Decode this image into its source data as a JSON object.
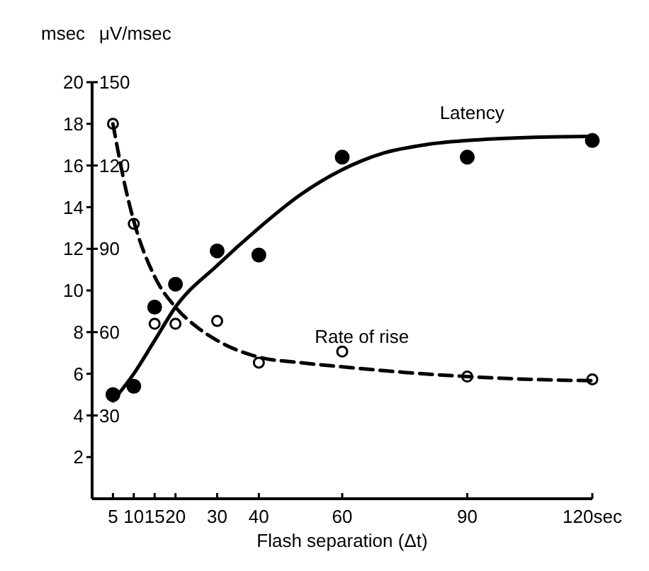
{
  "chart_data": {
    "type": "scatter",
    "xlabel": "Flash separation (Δt)",
    "ylabel": "msec",
    "y2label": "μV/msec",
    "xlim": [
      0,
      120
    ],
    "xticks": [
      5,
      10,
      15,
      20,
      30,
      40,
      60,
      90,
      {
        "value": 120,
        "label": "120sec"
      }
    ],
    "ylim": [
      0,
      20
    ],
    "yticks": [
      2,
      4,
      6,
      8,
      10,
      12,
      14,
      16,
      18,
      20
    ],
    "y2lim": [
      0,
      150
    ],
    "y2ticks": [
      30,
      60,
      90,
      120,
      150
    ],
    "grid": false,
    "series": [
      {
        "color": "#000000",
        "marker": "circle",
        "x": [
          5,
          10,
          15,
          20,
          30,
          40,
          60,
          90,
          120
        ],
        "values": [
          5.0,
          5.4,
          9.2,
          10.3,
          11.9,
          11.7,
          16.4,
          16.4,
          17.2
        ]
      },
      {
        "color": "#000000",
        "marker": "circle",
        "axis": "y2",
        "x": [
          5,
          10,
          15,
          20,
          30,
          40,
          60,
          90,
          120
        ],
        "values": [
          135,
          99,
          63,
          63,
          64,
          49,
          53,
          44,
          43
        ]
      },
      {
        "type": "line",
        "name": "Latency",
        "color": "#000000",
        "line_style": "solid",
        "x": [
          5,
          10,
          15,
          20,
          30,
          40,
          50,
          60,
          70,
          80,
          90,
          105,
          120
        ],
        "values": [
          4.7,
          6.0,
          7.6,
          9.2,
          11.2,
          13.0,
          14.6,
          15.8,
          16.6,
          17.0,
          17.2,
          17.35,
          17.4
        ]
      },
      {
        "type": "line",
        "name": "Rate of rise",
        "color": "#000000",
        "line_style": "dashed",
        "axis": "y2",
        "x": [
          5,
          8,
          10,
          15,
          20,
          25,
          30,
          40,
          50,
          60,
          75,
          90,
          105,
          120
        ],
        "values": [
          135,
          112,
          100,
          80,
          69,
          62,
          57,
          51,
          49,
          47.5,
          45.5,
          44,
          43,
          42.5
        ]
      }
    ]
  }
}
